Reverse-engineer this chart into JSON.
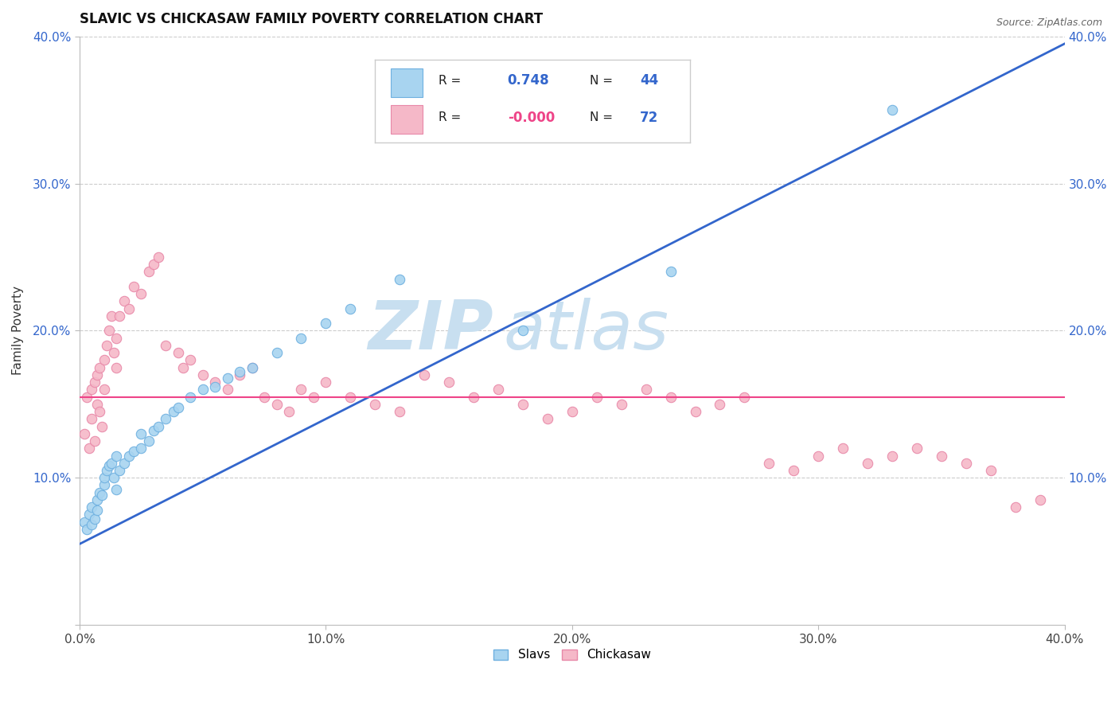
{
  "title": "SLAVIC VS CHICKASAW FAMILY POVERTY CORRELATION CHART",
  "source": "Source: ZipAtlas.com",
  "ylabel": "Family Poverty",
  "xlim": [
    0.0,
    0.4
  ],
  "ylim": [
    0.0,
    0.4
  ],
  "slavic_R": 0.748,
  "slavic_N": 44,
  "chickasaw_R": -0.0,
  "chickasaw_N": 72,
  "slavic_color": "#A8D4F0",
  "slavic_edge": "#6EB0E0",
  "chickasaw_color": "#F5B8C8",
  "chickasaw_edge": "#E888A8",
  "blue_line_color": "#3366CC",
  "pink_line_color": "#EE4488",
  "watermark_color": "#C8DFF0",
  "grid_color": "#CCCCCC",
  "slavic_line_x": [
    0.0,
    0.4
  ],
  "slavic_line_y": [
    0.055,
    0.395
  ],
  "chickasaw_line_y": 0.155,
  "figsize": [
    14.06,
    8.92
  ],
  "dpi": 100,
  "slavic_x": [
    0.002,
    0.003,
    0.004,
    0.005,
    0.005,
    0.006,
    0.007,
    0.007,
    0.008,
    0.009,
    0.01,
    0.01,
    0.011,
    0.012,
    0.013,
    0.014,
    0.015,
    0.015,
    0.016,
    0.018,
    0.02,
    0.022,
    0.025,
    0.025,
    0.028,
    0.03,
    0.032,
    0.035,
    0.038,
    0.04,
    0.045,
    0.05,
    0.055,
    0.06,
    0.065,
    0.07,
    0.08,
    0.09,
    0.1,
    0.11,
    0.13,
    0.18,
    0.24,
    0.33
  ],
  "slavic_y": [
    0.07,
    0.065,
    0.075,
    0.08,
    0.068,
    0.072,
    0.085,
    0.078,
    0.09,
    0.088,
    0.095,
    0.1,
    0.105,
    0.108,
    0.11,
    0.1,
    0.115,
    0.092,
    0.105,
    0.11,
    0.115,
    0.118,
    0.12,
    0.13,
    0.125,
    0.132,
    0.135,
    0.14,
    0.145,
    0.148,
    0.155,
    0.16,
    0.162,
    0.168,
    0.172,
    0.175,
    0.185,
    0.195,
    0.205,
    0.215,
    0.235,
    0.2,
    0.24,
    0.35
  ],
  "chickasaw_x": [
    0.002,
    0.003,
    0.004,
    0.005,
    0.005,
    0.006,
    0.006,
    0.007,
    0.007,
    0.008,
    0.008,
    0.009,
    0.01,
    0.01,
    0.011,
    0.012,
    0.013,
    0.014,
    0.015,
    0.015,
    0.016,
    0.018,
    0.02,
    0.022,
    0.025,
    0.028,
    0.03,
    0.032,
    0.035,
    0.04,
    0.042,
    0.045,
    0.05,
    0.055,
    0.06,
    0.065,
    0.07,
    0.075,
    0.08,
    0.085,
    0.09,
    0.095,
    0.1,
    0.11,
    0.12,
    0.13,
    0.14,
    0.15,
    0.16,
    0.17,
    0.18,
    0.19,
    0.2,
    0.21,
    0.22,
    0.23,
    0.24,
    0.25,
    0.26,
    0.27,
    0.28,
    0.29,
    0.3,
    0.31,
    0.32,
    0.33,
    0.34,
    0.35,
    0.36,
    0.37,
    0.38,
    0.39
  ],
  "chickasaw_y": [
    0.13,
    0.155,
    0.12,
    0.16,
    0.14,
    0.165,
    0.125,
    0.15,
    0.17,
    0.145,
    0.175,
    0.135,
    0.16,
    0.18,
    0.19,
    0.2,
    0.21,
    0.185,
    0.195,
    0.175,
    0.21,
    0.22,
    0.215,
    0.23,
    0.225,
    0.24,
    0.245,
    0.25,
    0.19,
    0.185,
    0.175,
    0.18,
    0.17,
    0.165,
    0.16,
    0.17,
    0.175,
    0.155,
    0.15,
    0.145,
    0.16,
    0.155,
    0.165,
    0.155,
    0.15,
    0.145,
    0.17,
    0.165,
    0.155,
    0.16,
    0.15,
    0.14,
    0.145,
    0.155,
    0.15,
    0.16,
    0.155,
    0.145,
    0.15,
    0.155,
    0.11,
    0.105,
    0.115,
    0.12,
    0.11,
    0.115,
    0.12,
    0.115,
    0.11,
    0.105,
    0.08,
    0.085
  ]
}
